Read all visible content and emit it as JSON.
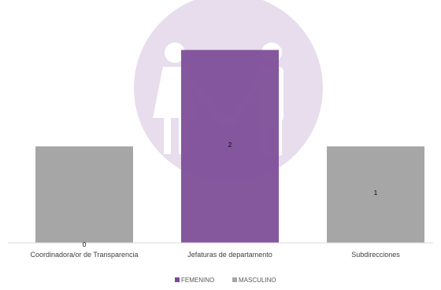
{
  "chart_data": {
    "type": "bar",
    "title": "",
    "xlabel": "",
    "ylabel": "",
    "categories": [
      "Coordinadora/or de Transparencia",
      "Jefaturas de departamento",
      "Subdirecciones"
    ],
    "ylim": [
      0,
      2.2
    ],
    "grid": false,
    "legend_position": "bottom",
    "series": [
      {
        "name": "FEMENINO",
        "color": "#7b4a96",
        "values": [
          0,
          2,
          0
        ]
      },
      {
        "name": "MASCULINO",
        "color": "#a6a6a6",
        "values": [
          1,
          0,
          1
        ]
      }
    ],
    "data_labels": [
      "0",
      "2",
      "1"
    ],
    "background_icon": "female-male-holding-hands-icon",
    "background_circle_color": "#e7dded"
  }
}
